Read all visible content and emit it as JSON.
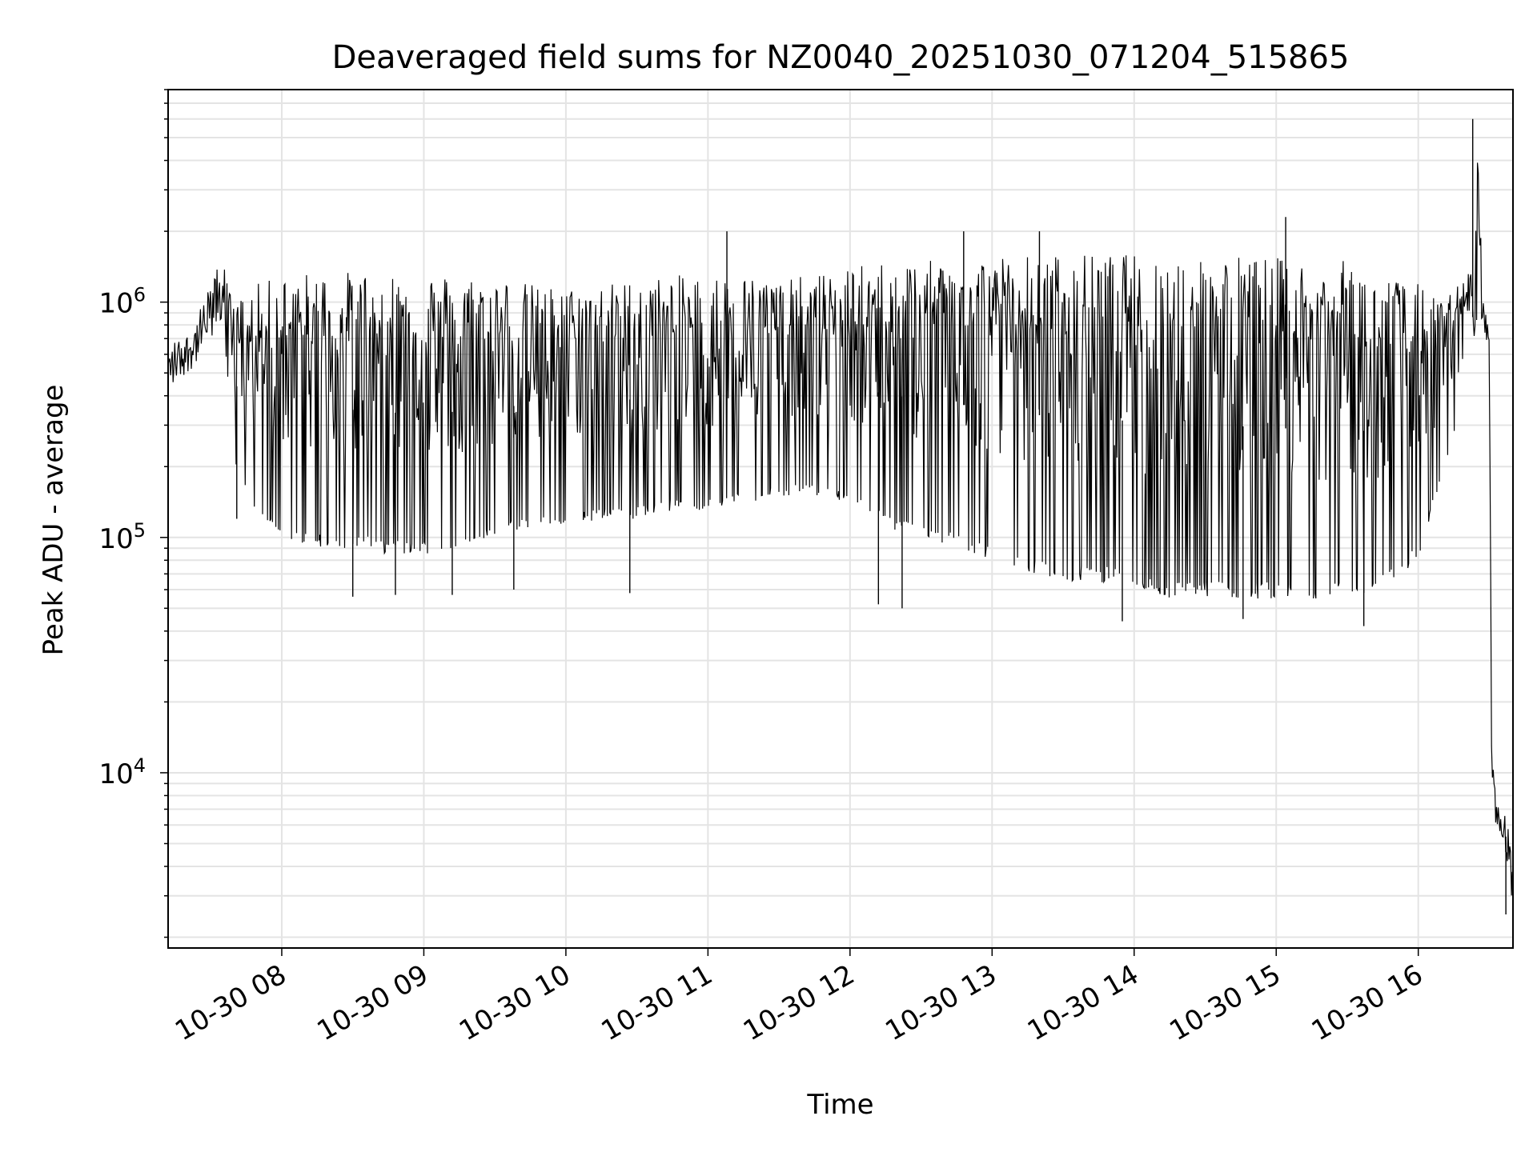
{
  "chart_data": {
    "type": "line",
    "title": "Deaveraged field sums for NZ0040_20251030_071204_515865",
    "xlabel": "Time",
    "ylabel": "Peak ADU - average",
    "yscale": "log",
    "ylim": [
      1800,
      8000000
    ],
    "xlim": [
      "2025-10-30 07:12",
      "2025-10-30 16:40"
    ],
    "x_ticks": [
      "10-30 08",
      "10-30 09",
      "10-30 10",
      "10-30 11",
      "10-30 12",
      "10-30 13",
      "10-30 14",
      "10-30 15",
      "10-30 16"
    ],
    "y_ticks": [
      {
        "base": "10",
        "exp": "4",
        "value": 10000
      },
      {
        "base": "10",
        "exp": "5",
        "value": 100000
      },
      {
        "base": "10",
        "exp": "6",
        "value": 1000000
      }
    ],
    "grid": true,
    "line_color": "#000000",
    "series": [
      {
        "x": [
          "2025-10-30 07:12",
          "2025-10-30 07:15",
          "2025-10-30 07:20",
          "2025-10-30 07:25",
          "2025-10-30 07:30",
          "2025-10-30 07:35",
          "2025-10-30 07:38",
          "2025-10-30 07:40",
          "2025-10-30 07:45",
          "2025-10-30 07:50",
          "2025-10-30 08:00",
          "2025-10-30 08:15",
          "2025-10-30 08:30",
          "2025-10-30 08:45",
          "2025-10-30 09:00",
          "2025-10-30 09:15",
          "2025-10-30 09:30",
          "2025-10-30 09:45",
          "2025-10-30 10:00",
          "2025-10-30 10:15",
          "2025-10-30 10:30",
          "2025-10-30 10:45",
          "2025-10-30 11:00",
          "2025-10-30 11:15",
          "2025-10-30 11:30",
          "2025-10-30 11:45",
          "2025-10-30 12:00",
          "2025-10-30 12:15",
          "2025-10-30 12:30",
          "2025-10-30 12:45",
          "2025-10-30 13:00",
          "2025-10-30 13:15",
          "2025-10-30 13:30",
          "2025-10-30 13:45",
          "2025-10-30 14:00",
          "2025-10-30 14:15",
          "2025-10-30 14:30",
          "2025-10-30 14:45",
          "2025-10-30 15:00",
          "2025-10-30 15:15",
          "2025-10-30 15:30",
          "2025-10-30 15:45",
          "2025-10-30 16:00",
          "2025-10-30 16:10",
          "2025-10-30 16:20",
          "2025-10-30 16:24",
          "2025-10-30 16:25",
          "2025-10-30 16:27",
          "2025-10-30 16:30",
          "2025-10-30 16:31",
          "2025-10-30 16:32",
          "2025-10-30 16:35",
          "2025-10-30 16:38",
          "2025-10-30 16:40"
        ],
        "high": [
          650000,
          700000,
          750000,
          900000,
          1200000,
          1600000,
          1100000,
          1000000,
          1100000,
          1200000,
          1300000,
          1350000,
          1350000,
          1350000,
          1350000,
          1300000,
          1300000,
          1200000,
          1150000,
          1200000,
          1250000,
          1300000,
          1300000,
          1300000,
          1250000,
          1300000,
          1400000,
          1500000,
          1500000,
          1500000,
          1600000,
          1600000,
          1600000,
          1600000,
          1600000,
          1600000,
          1600000,
          1600000,
          1550000,
          1500000,
          1500000,
          1300000,
          1200000,
          1000000,
          1300000,
          1400000,
          6000000,
          1300000,
          700000,
          15000,
          9000,
          7000,
          6500,
          3500
        ],
        "low": [
          400000,
          450000,
          500000,
          550000,
          650000,
          800000,
          400000,
          200000,
          150000,
          120000,
          100000,
          90000,
          90000,
          85000,
          85000,
          90000,
          100000,
          110000,
          110000,
          120000,
          120000,
          130000,
          130000,
          140000,
          150000,
          150000,
          140000,
          110000,
          100000,
          90000,
          80000,
          70000,
          65000,
          65000,
          60000,
          55000,
          55000,
          55000,
          55000,
          55000,
          55000,
          60000,
          80000,
          180000,
          400000,
          600000,
          900000,
          800000,
          500000,
          9000,
          5500,
          5000,
          4000,
          2500
        ],
        "spikes": [
          {
            "x": "2025-10-30 07:41",
            "y": 120000
          },
          {
            "x": "2025-10-30 08:30",
            "y": 56000
          },
          {
            "x": "2025-10-30 08:48",
            "y": 57000
          },
          {
            "x": "2025-10-30 09:12",
            "y": 57000
          },
          {
            "x": "2025-10-30 09:38",
            "y": 60000
          },
          {
            "x": "2025-10-30 10:27",
            "y": 58000
          },
          {
            "x": "2025-10-30 12:12",
            "y": 52000
          },
          {
            "x": "2025-10-30 12:22",
            "y": 50000
          },
          {
            "x": "2025-10-30 13:55",
            "y": 44000
          },
          {
            "x": "2025-10-30 14:46",
            "y": 45000
          },
          {
            "x": "2025-10-30 15:37",
            "y": 42000
          },
          {
            "x": "2025-10-30 11:08",
            "y": 2000000
          },
          {
            "x": "2025-10-30 12:48",
            "y": 2000000
          },
          {
            "x": "2025-10-30 13:20",
            "y": 2000000
          },
          {
            "x": "2025-10-30 15:04",
            "y": 2300000
          },
          {
            "x": "2025-10-30 16:23",
            "y": 6000000
          },
          {
            "x": "2025-10-30 16:37",
            "y": 2500
          }
        ]
      }
    ]
  }
}
